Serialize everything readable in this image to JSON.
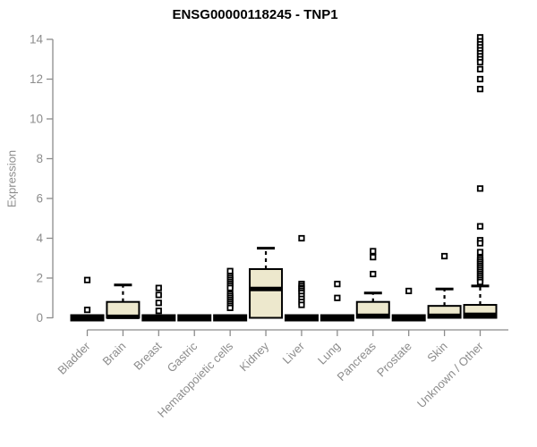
{
  "title": "ENSG00000118245 - TNP1",
  "chart_data": {
    "type": "boxplot",
    "title": "ENSG00000118245 - TNP1",
    "ylabel": "Expression",
    "xlabel": "",
    "ylim": [
      0,
      14
    ],
    "yticks": [
      0,
      2,
      4,
      6,
      8,
      10,
      12,
      14
    ],
    "grid": false,
    "legend": "none",
    "colors": {
      "box_fill": "#EDE8CD",
      "box_stroke": "#000000",
      "median": "#000000",
      "outlier_stroke": "#000000",
      "axis": "#8C8C8C",
      "title": "#000000",
      "background": "#FFFFFF"
    },
    "categories": [
      "Bladder",
      "Brain",
      "Breast",
      "Gastric",
      "Hematopoietic cells",
      "Kidney",
      "Liver",
      "Lung",
      "Pancreas",
      "Prostate",
      "Skin",
      "Unknown / Other"
    ],
    "boxes": [
      {
        "label": "Bladder",
        "q1": 0,
        "median": 0,
        "q3": 0,
        "whisker_low": 0,
        "whisker_high": 0,
        "outliers": [
          1.9,
          0.4
        ]
      },
      {
        "label": "Brain",
        "q1": 0,
        "median": 0.05,
        "q3": 0.8,
        "whisker_low": 0,
        "whisker_high": 1.65,
        "outliers": []
      },
      {
        "label": "Breast",
        "q1": 0,
        "median": 0,
        "q3": 0,
        "whisker_low": 0,
        "whisker_high": 0,
        "outliers": [
          1.5,
          1.15,
          0.75,
          0.35
        ]
      },
      {
        "label": "Gastric",
        "q1": 0,
        "median": 0,
        "q3": 0,
        "whisker_low": 0,
        "whisker_high": 0,
        "outliers": []
      },
      {
        "label": "Hematopoietic cells",
        "q1": 0,
        "median": 0,
        "q3": 0,
        "whisker_low": 0,
        "whisker_high": 0,
        "outliers": [
          2.35,
          2.1,
          2.0,
          1.9,
          1.8,
          1.7,
          1.6,
          1.5,
          1.2,
          1.1,
          1.0,
          0.9,
          0.8,
          0.7,
          0.6,
          0.5
        ]
      },
      {
        "label": "Kidney",
        "q1": 0,
        "median": 1.45,
        "q3": 2.45,
        "whisker_low": 0,
        "whisker_high": 3.5,
        "outliers": []
      },
      {
        "label": "Liver",
        "q1": 0,
        "median": 0,
        "q3": 0,
        "whisker_low": 0,
        "whisker_high": 0,
        "outliers": [
          4.0,
          1.7,
          1.6,
          1.5,
          1.45,
          1.35,
          1.25,
          1.1,
          0.95,
          0.8,
          0.65
        ]
      },
      {
        "label": "Lung",
        "q1": 0,
        "median": 0,
        "q3": 0,
        "whisker_low": 0,
        "whisker_high": 0,
        "outliers": [
          1.7,
          1.0
        ]
      },
      {
        "label": "Pancreas",
        "q1": 0,
        "median": 0.1,
        "q3": 0.8,
        "whisker_low": 0,
        "whisker_high": 1.25,
        "outliers": [
          3.35,
          3.05,
          2.2
        ]
      },
      {
        "label": "Prostate",
        "q1": 0,
        "median": 0,
        "q3": 0,
        "whisker_low": 0,
        "whisker_high": 0,
        "outliers": [
          1.35
        ]
      },
      {
        "label": "Skin",
        "q1": 0,
        "median": 0.1,
        "q3": 0.6,
        "whisker_low": 0,
        "whisker_high": 1.45,
        "outliers": [
          3.1
        ]
      },
      {
        "label": "Unknown / Other",
        "q1": 0,
        "median": 0.15,
        "q3": 0.65,
        "whisker_low": 0,
        "whisker_high": 1.6,
        "outliers": [
          14.1,
          13.9,
          13.75,
          13.6,
          13.45,
          13.3,
          13.15,
          13.0,
          12.85,
          12.5,
          12.0,
          11.5,
          6.5,
          4.6,
          3.9,
          3.75,
          3.3,
          3.0,
          2.9,
          2.8,
          2.7,
          2.6,
          2.5,
          2.4,
          2.3,
          2.2,
          2.1,
          2.0,
          1.9,
          1.8
        ]
      }
    ]
  }
}
